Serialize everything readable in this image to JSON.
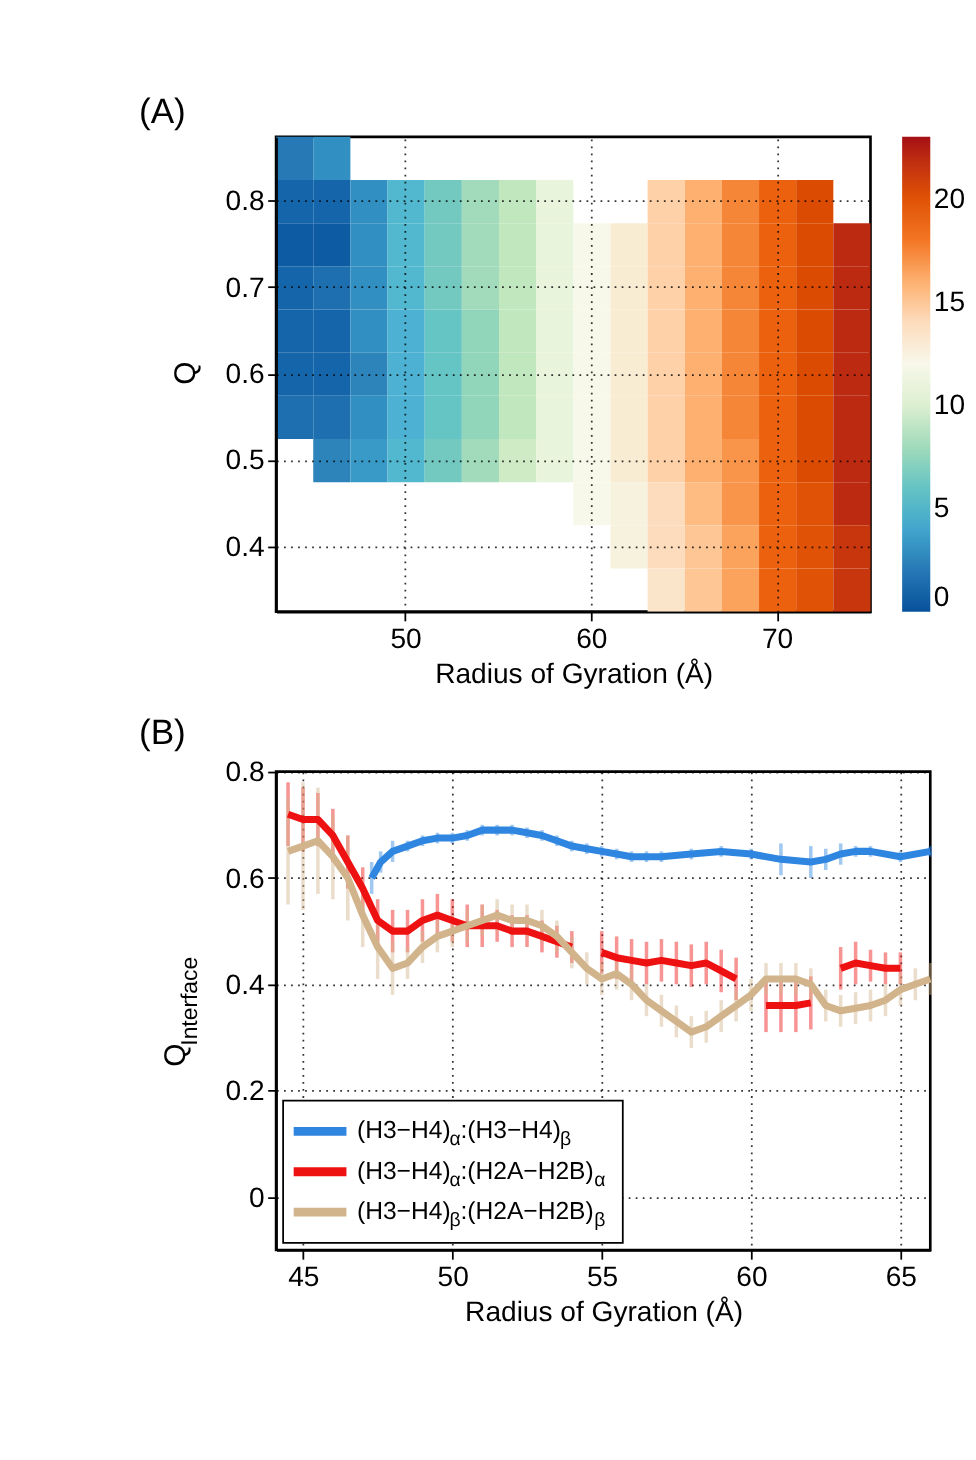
{
  "chart_data": [
    {
      "type": "heatmap",
      "title": "(A)",
      "xlabel": "Radius of Gyration (Å)",
      "ylabel": "Q",
      "grid": true,
      "categories": [
        null,
        null,
        null,
        "50",
        null,
        null,
        null,
        null,
        "60",
        null,
        null,
        null,
        null,
        "70",
        null,
        null
      ],
      "y_categories": [
        null,
        "0.8",
        null,
        "0.7",
        null,
        "0.6",
        null,
        "0.5",
        null,
        "0.4",
        null
      ],
      "cells": [
        [
          2,
          3,
          null,
          null,
          null,
          null,
          null,
          null,
          null,
          null,
          null,
          null,
          null,
          null,
          null,
          null
        ],
        [
          1,
          1,
          3,
          5,
          6.5,
          8,
          9,
          10.5,
          null,
          null,
          14.5,
          16,
          17.5,
          19,
          20.5,
          null
        ],
        [
          0.5,
          0.5,
          3,
          5,
          6.5,
          8,
          9,
          10.5,
          12,
          13,
          14.5,
          16,
          17.5,
          19,
          20.5,
          22
        ],
        [
          1,
          1.5,
          3,
          5,
          6.5,
          8,
          9,
          10.5,
          12,
          13,
          14.5,
          16,
          17.5,
          19,
          20.5,
          22
        ],
        [
          1,
          1,
          3,
          4.5,
          6,
          7.5,
          9,
          10.5,
          12,
          13,
          14.5,
          16,
          17.5,
          19,
          20.5,
          22
        ],
        [
          1,
          1,
          2.5,
          4.5,
          6,
          7.5,
          9,
          10.5,
          12,
          13,
          14.5,
          16,
          17.5,
          19,
          20.5,
          22
        ],
        [
          1.5,
          1.5,
          3,
          4.5,
          6,
          7.5,
          9,
          10.5,
          12,
          13,
          14.5,
          16,
          17.5,
          19,
          20.5,
          22
        ],
        [
          null,
          2.5,
          3.5,
          5,
          6.5,
          8,
          9.5,
          10.5,
          12,
          13,
          14.5,
          16,
          17,
          19,
          20.5,
          22
        ],
        [
          null,
          null,
          null,
          null,
          null,
          null,
          null,
          null,
          12,
          12.5,
          14,
          15.5,
          17,
          19,
          20,
          22
        ],
        [
          null,
          null,
          null,
          null,
          null,
          null,
          null,
          null,
          null,
          12.5,
          14,
          15,
          16.5,
          19,
          20,
          21.5
        ],
        [
          null,
          null,
          null,
          null,
          null,
          null,
          null,
          null,
          null,
          null,
          13.5,
          15,
          16.5,
          19,
          20,
          21.5
        ]
      ],
      "clim": [
        0,
        23
      ],
      "cticks": [
        0,
        5,
        10,
        15,
        20
      ]
    },
    {
      "type": "line",
      "title": "(B)",
      "xlabel": "Radius of Gyration (Å)",
      "ylabel": "Q$_{Interface}$",
      "grid": true,
      "legend": "bottom left",
      "xlim": [
        44.1,
        66
      ],
      "xticks": [
        45,
        50,
        55,
        60,
        65
      ],
      "ylim": [
        -0.1,
        0.8
      ],
      "yticks": [
        0,
        0.2,
        0.4,
        0.6,
        0.8
      ],
      "series": [
        {
          "name": "(H3−H4)$_{α}$:(H3−H4)$_{β}$",
          "color": "#2f86e0",
          "x": [
            47.3,
            47.6,
            48,
            48.5,
            49,
            49.5,
            50,
            50.5,
            51,
            51.5,
            52,
            52.5,
            53,
            53.5,
            54,
            54.5,
            55,
            55.5,
            56,
            56.5,
            57,
            58,
            59,
            60,
            61,
            62,
            62.5,
            63,
            63.5,
            64,
            65,
            66
          ],
          "values": [
            0.6,
            0.63,
            0.65,
            0.66,
            0.67,
            0.675,
            0.675,
            0.68,
            0.69,
            0.69,
            0.69,
            0.685,
            0.68,
            0.67,
            0.66,
            0.655,
            0.65,
            0.645,
            0.64,
            0.64,
            0.64,
            0.645,
            0.65,
            0.645,
            0.635,
            0.63,
            0.635,
            0.645,
            0.65,
            0.65,
            0.64,
            0.65
          ],
          "errors": [
            0.03,
            0.02,
            0.02,
            0.01,
            0.01,
            0.01,
            0.01,
            0.01,
            0.01,
            0.01,
            0.01,
            0.01,
            0.01,
            0.01,
            0.01,
            0.01,
            0.01,
            0.01,
            0.01,
            0.01,
            0.01,
            0.01,
            0.01,
            0.01,
            0.03,
            0.03,
            0.02,
            0.02,
            0.01,
            0.01,
            0.01,
            0.01
          ]
        },
        {
          "name": "(H3−H4)$_{α}$:(H2A−H2B)$_{α}$",
          "color": "#ee1111",
          "x": [
            44.5,
            45,
            45.5,
            46,
            46.5,
            47,
            47.5,
            48,
            48.5,
            49,
            49.5,
            50,
            50.5,
            51,
            51.5,
            52,
            52.5,
            53,
            53.5,
            54,
            54.5,
            55,
            55.5,
            56,
            56.5,
            57,
            57.5,
            58,
            58.5,
            59,
            59.5,
            60,
            60.5,
            61,
            61.5,
            62,
            62.5,
            63,
            63.5,
            64,
            64.5,
            65
          ],
          "values": [
            0.72,
            0.71,
            0.71,
            0.68,
            0.63,
            0.58,
            0.52,
            0.5,
            0.5,
            0.52,
            0.53,
            0.52,
            0.51,
            0.51,
            0.51,
            0.5,
            0.5,
            0.49,
            0.48,
            0.47,
            null,
            0.46,
            0.45,
            0.445,
            0.44,
            0.445,
            0.44,
            0.435,
            0.44,
            0.425,
            0.41,
            null,
            0.36,
            0.36,
            0.36,
            0.365,
            null,
            0.43,
            0.44,
            0.435,
            0.43,
            0.43
          ],
          "errors": [
            0.06,
            0.06,
            0.05,
            0.05,
            0.05,
            0.04,
            0.04,
            0.04,
            0.04,
            0.04,
            0.04,
            0.04,
            0.04,
            0.04,
            0.03,
            0.03,
            0.03,
            0.03,
            0.03,
            0.03,
            null,
            0.04,
            0.04,
            0.04,
            0.04,
            0.04,
            0.04,
            0.04,
            0.04,
            0.04,
            0.04,
            null,
            0.05,
            0.05,
            0.05,
            0.05,
            null,
            0.04,
            0.04,
            0.03,
            0.03,
            0.03
          ]
        },
        {
          "name": "(H3−H4)$_{β}$:(H2A−H2B)$_{β}$",
          "color": "#d2b48c",
          "x": [
            44.5,
            45,
            45.5,
            46,
            46.5,
            47,
            47.5,
            48,
            48.5,
            49,
            49.5,
            50,
            50.5,
            51,
            51.5,
            52,
            52.5,
            53,
            53.5,
            54,
            54.5,
            55,
            55.5,
            56,
            56.5,
            57,
            57.5,
            58,
            58.5,
            59,
            59.5,
            60,
            60.5,
            61,
            61.5,
            62,
            62.5,
            63,
            63.5,
            64,
            64.5,
            65,
            65.5,
            66
          ],
          "values": [
            0.65,
            0.66,
            0.67,
            0.64,
            0.6,
            0.53,
            0.47,
            0.43,
            0.44,
            0.47,
            0.49,
            0.5,
            0.51,
            0.52,
            0.53,
            0.52,
            0.52,
            0.51,
            0.49,
            0.46,
            0.43,
            0.41,
            0.42,
            0.4,
            0.37,
            0.35,
            0.33,
            0.31,
            0.32,
            0.34,
            0.36,
            0.38,
            0.41,
            0.41,
            0.41,
            0.4,
            0.36,
            0.35,
            0.355,
            0.36,
            0.37,
            0.39,
            0.4,
            0.41
          ],
          "errors": [
            0.1,
            0.12,
            0.1,
            0.08,
            0.08,
            0.06,
            0.06,
            0.05,
            0.03,
            0.03,
            0.03,
            0.03,
            0.03,
            0.03,
            0.03,
            0.03,
            0.03,
            0.03,
            0.03,
            0.03,
            0.03,
            0.03,
            0.03,
            0.03,
            0.03,
            0.03,
            0.03,
            0.03,
            0.03,
            0.03,
            0.03,
            0.03,
            0.03,
            0.03,
            0.03,
            0.03,
            0.03,
            0.03,
            0.03,
            0.03,
            0.03,
            0.03,
            0.03,
            0.03
          ]
        }
      ]
    }
  ]
}
